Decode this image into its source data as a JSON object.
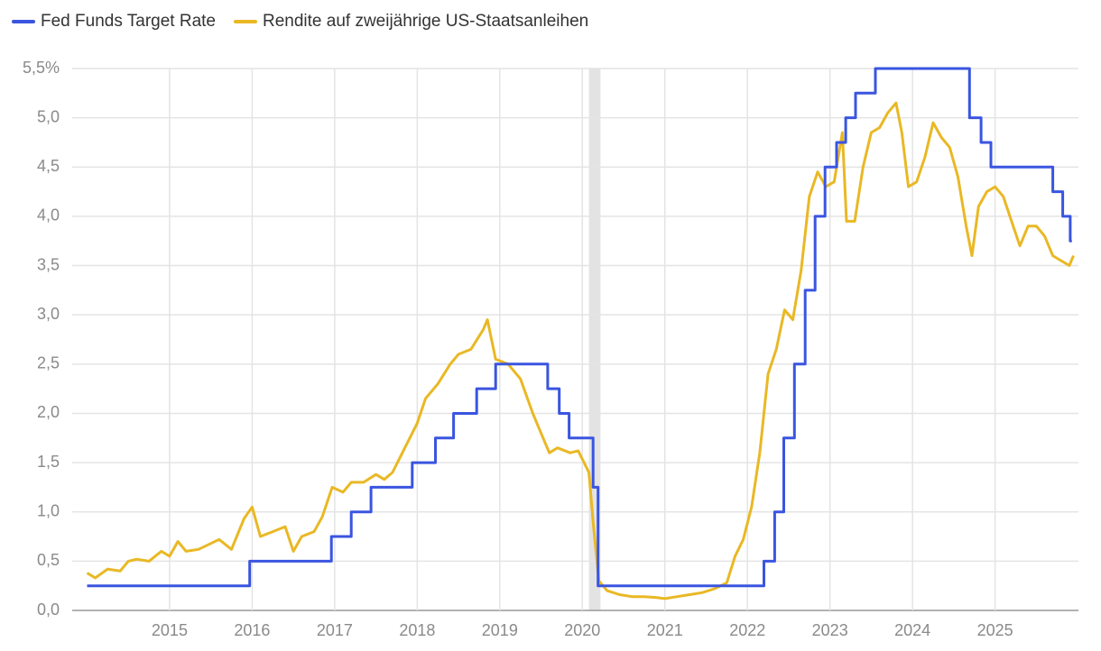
{
  "chart_data": {
    "type": "line",
    "xlim": [
      2013.82,
      2026.01
    ],
    "xticks": [
      2015,
      2016,
      2017,
      2018,
      2019,
      2020,
      2021,
      2022,
      2023,
      2024,
      2025
    ],
    "ylim": [
      0,
      5.5
    ],
    "yticks": [
      {
        "value": 0,
        "label": "0,0"
      },
      {
        "value": 0.5,
        "label": "0,5"
      },
      {
        "value": 1,
        "label": "1,0"
      },
      {
        "value": 1.5,
        "label": "1,5"
      },
      {
        "value": 2,
        "label": "2,0"
      },
      {
        "value": 2.5,
        "label": "2,5"
      },
      {
        "value": 3,
        "label": "3,0"
      },
      {
        "value": 3.5,
        "label": "3,5"
      },
      {
        "value": 4,
        "label": "4,0"
      },
      {
        "value": 4.5,
        "label": "4,5"
      },
      {
        "value": 5,
        "label": "5,0"
      },
      {
        "value": 5.5,
        "label": "5,5%"
      }
    ],
    "grid": true,
    "legend": "top-left",
    "shaded_regions": [
      [
        2020.08,
        2020.22
      ]
    ],
    "series": [
      {
        "name": "Fed Funds Target Rate",
        "color": "#3a55e0",
        "x": [
          2014.0,
          2015.97,
          2015.97,
          2016.96,
          2016.96,
          2017.2,
          2017.2,
          2017.44,
          2017.44,
          2017.94,
          2017.94,
          2018.22,
          2018.22,
          2018.44,
          2018.44,
          2018.72,
          2018.72,
          2018.95,
          2018.95,
          2019.58,
          2019.58,
          2019.72,
          2019.72,
          2019.84,
          2019.84,
          2020.13,
          2020.13,
          2020.19,
          2020.19,
          2022.2,
          2022.2,
          2022.33,
          2022.33,
          2022.44,
          2022.44,
          2022.57,
          2022.57,
          2022.7,
          2022.7,
          2022.82,
          2022.82,
          2022.94,
          2022.94,
          2023.08,
          2023.08,
          2023.19,
          2023.19,
          2023.31,
          2023.31,
          2023.55,
          2023.55,
          2024.69,
          2024.69,
          2024.83,
          2024.83,
          2024.95,
          2024.95,
          2025.7,
          2025.7,
          2025.82,
          2025.82,
          2025.91,
          2025.91,
          2025.93
        ],
        "values": [
          0.25,
          0.25,
          0.5,
          0.5,
          0.75,
          0.75,
          1.0,
          1.0,
          1.25,
          1.25,
          1.5,
          1.5,
          1.75,
          1.75,
          2.0,
          2.0,
          2.25,
          2.25,
          2.5,
          2.5,
          2.25,
          2.25,
          2.0,
          2.0,
          1.75,
          1.75,
          1.25,
          1.25,
          0.25,
          0.25,
          0.5,
          0.5,
          1.0,
          1.0,
          1.75,
          1.75,
          2.5,
          2.5,
          3.25,
          3.25,
          4.0,
          4.0,
          4.5,
          4.5,
          4.75,
          4.75,
          5.0,
          5.0,
          5.25,
          5.25,
          5.5,
          5.5,
          5.0,
          5.0,
          4.75,
          4.75,
          4.5,
          4.5,
          4.25,
          4.25,
          4.0,
          4.0,
          3.75,
          3.75
        ]
      },
      {
        "name": "Rendite auf zweijährige US-Staatsanleihen",
        "color": "#e9b824",
        "x": [
          2014.0,
          2014.1,
          2014.25,
          2014.4,
          2014.5,
          2014.6,
          2014.75,
          2014.9,
          2015.0,
          2015.1,
          2015.2,
          2015.35,
          2015.5,
          2015.6,
          2015.75,
          2015.9,
          2016.0,
          2016.1,
          2016.25,
          2016.4,
          2016.5,
          2016.6,
          2016.75,
          2016.85,
          2016.97,
          2017.1,
          2017.2,
          2017.35,
          2017.5,
          2017.6,
          2017.7,
          2017.85,
          2018.0,
          2018.1,
          2018.25,
          2018.4,
          2018.5,
          2018.65,
          2018.8,
          2018.85,
          2018.95,
          2019.1,
          2019.25,
          2019.4,
          2019.5,
          2019.6,
          2019.7,
          2019.85,
          2019.95,
          2020.08,
          2020.13,
          2020.2,
          2020.3,
          2020.45,
          2020.6,
          2020.75,
          2020.9,
          2021.0,
          2021.15,
          2021.3,
          2021.45,
          2021.6,
          2021.75,
          2021.85,
          2021.95,
          2022.05,
          2022.15,
          2022.25,
          2022.35,
          2022.45,
          2022.55,
          2022.65,
          2022.75,
          2022.85,
          2022.95,
          2023.05,
          2023.15,
          2023.2,
          2023.3,
          2023.4,
          2023.5,
          2023.6,
          2023.7,
          2023.8,
          2023.87,
          2023.95,
          2024.05,
          2024.15,
          2024.25,
          2024.35,
          2024.45,
          2024.55,
          2024.65,
          2024.72,
          2024.8,
          2024.9,
          2025.0,
          2025.1,
          2025.2,
          2025.3,
          2025.4,
          2025.5,
          2025.6,
          2025.7,
          2025.8,
          2025.9,
          2025.95
        ],
        "values": [
          0.38,
          0.33,
          0.42,
          0.4,
          0.5,
          0.52,
          0.5,
          0.6,
          0.55,
          0.7,
          0.6,
          0.62,
          0.68,
          0.72,
          0.62,
          0.93,
          1.05,
          0.75,
          0.8,
          0.85,
          0.6,
          0.75,
          0.8,
          0.95,
          1.25,
          1.2,
          1.3,
          1.3,
          1.38,
          1.33,
          1.4,
          1.65,
          1.9,
          2.15,
          2.3,
          2.5,
          2.6,
          2.65,
          2.85,
          2.95,
          2.55,
          2.5,
          2.35,
          2.0,
          1.8,
          1.6,
          1.65,
          1.6,
          1.62,
          1.4,
          0.9,
          0.3,
          0.2,
          0.16,
          0.14,
          0.14,
          0.13,
          0.12,
          0.14,
          0.16,
          0.18,
          0.22,
          0.28,
          0.55,
          0.72,
          1.05,
          1.6,
          2.4,
          2.65,
          3.05,
          2.95,
          3.45,
          4.2,
          4.45,
          4.3,
          4.35,
          4.85,
          3.95,
          3.95,
          4.5,
          4.85,
          4.9,
          5.05,
          5.15,
          4.85,
          4.3,
          4.35,
          4.6,
          4.95,
          4.8,
          4.7,
          4.4,
          3.9,
          3.6,
          4.1,
          4.25,
          4.3,
          4.2,
          3.95,
          3.7,
          3.9,
          3.9,
          3.8,
          3.6,
          3.55,
          3.5,
          3.6
        ]
      }
    ]
  }
}
